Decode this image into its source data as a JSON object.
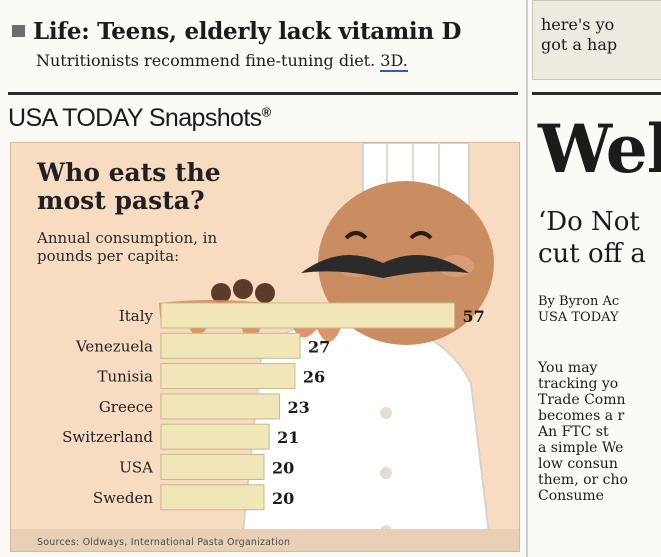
{
  "teaser": {
    "headline": "Life: Teens, elderly lack vitamin D",
    "sub_text": "Nutritionists recommend fine-tuning diet.",
    "sub_ref": "3D."
  },
  "snapshots": {
    "label": "USA TODAY Snapshots",
    "mark": "®"
  },
  "colors": {
    "panel_bg": "#f7dcc2",
    "bar_fill": "#f1e6b8",
    "bar_stroke": "#c9b98a",
    "chef_coat": "#ffffff",
    "face": "#c98d61",
    "sauce": "#d98a5e"
  },
  "chart_data": {
    "type": "bar",
    "orientation": "horizontal",
    "title": "Who eats the most pasta?",
    "subtitle": "Annual consumption, in pounds per capita:",
    "categories": [
      "Italy",
      "Venezuela",
      "Tunisia",
      "Greece",
      "Switzerland",
      "USA",
      "Sweden"
    ],
    "values": [
      57,
      27,
      26,
      23,
      21,
      20,
      20
    ],
    "source": "Sources: Oldways, International Pasta Organization",
    "grid": false,
    "legend": "none"
  },
  "right_column": {
    "promo_line1": "here's yo",
    "promo_line2": "got a hap",
    "big_headline": "Wel",
    "deck_line1": "‘Do Not",
    "deck_line2": "cut off a",
    "byline1": "By Byron Ac",
    "byline2": "USA TODAY",
    "body_lines": [
      "  You may",
      "tracking yo",
      "Trade Comn",
      "becomes a r",
      "  An FTC st",
      "a simple We",
      "low consun",
      "them, or cho",
      "  Consume"
    ]
  }
}
